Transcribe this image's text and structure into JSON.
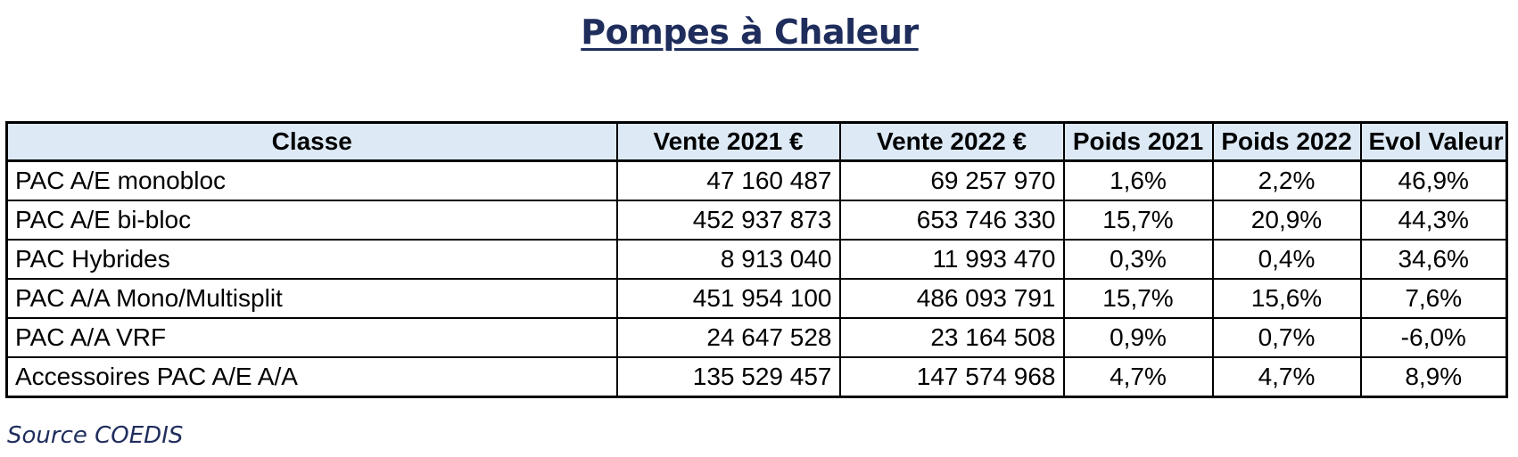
{
  "title": "Pompes à Chaleur",
  "table": {
    "headers": [
      "Classe",
      "Vente 2021 €",
      "Vente 2022 €",
      "Poids 2021",
      "Poids 2022",
      "Evol Valeur"
    ],
    "rows": [
      [
        "PAC A/E monobloc",
        "47 160 487",
        "69 257 970",
        "1,6%",
        "2,2%",
        "46,9%"
      ],
      [
        "PAC A/E bi-bloc",
        "452 937 873",
        "653 746 330",
        "15,7%",
        "20,9%",
        "44,3%"
      ],
      [
        "PAC Hybrides",
        "8 913 040",
        "11 993 470",
        "0,3%",
        "0,4%",
        "34,6%"
      ],
      [
        "PAC A/A Mono/Multisplit",
        "451 954 100",
        "486 093 791",
        "15,7%",
        "15,6%",
        "7,6%"
      ],
      [
        "PAC A/A VRF",
        "24 647 528",
        "23 164 508",
        "0,9%",
        "0,7%",
        "-6,0%"
      ],
      [
        "Accessoires PAC A/E A/A",
        "135 529 457",
        "147 574 968",
        "4,7%",
        "4,7%",
        "8,9%"
      ]
    ]
  },
  "source": "Source COEDIS",
  "colors": {
    "title": "#1f2d5c",
    "header_bg": "#ddeaf6",
    "border": "#000000"
  }
}
